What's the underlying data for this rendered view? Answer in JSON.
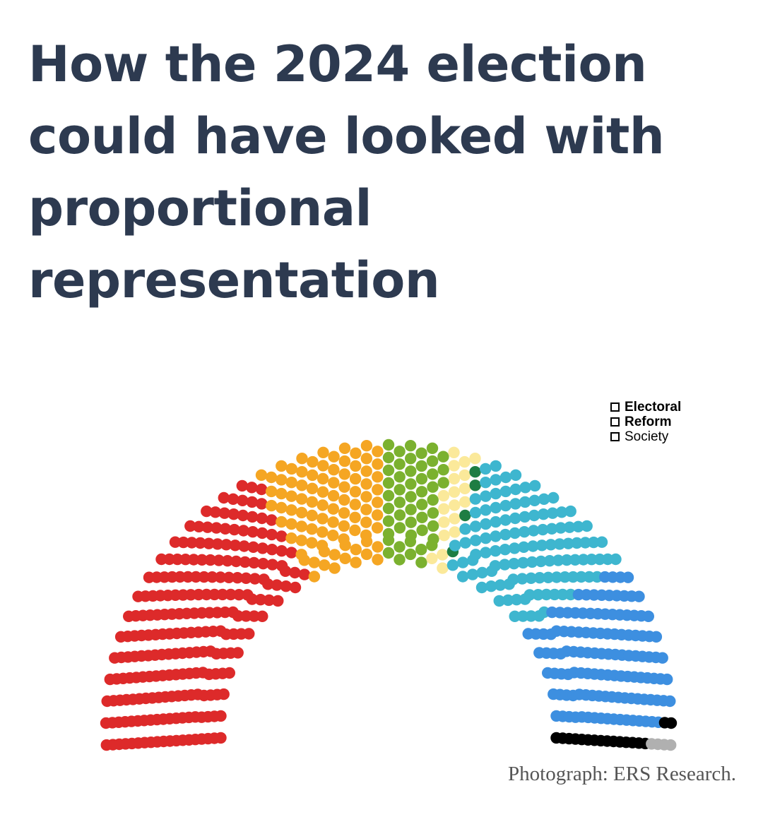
{
  "title": "How the 2024 election could have looked with proportional representation",
  "caption": "Photograph: ERS Research.",
  "logo": {
    "line1": "Electoral",
    "line2": "Reform",
    "line3": "Society"
  },
  "chart_data": {
    "type": "parliament",
    "title": "",
    "total_seats": 650,
    "series": [
      {
        "values": [
          230
        ],
        "color": "#dd2a2a"
      },
      {
        "values": [
          90
        ],
        "color": "#f5a623"
      },
      {
        "values": [
          50
        ],
        "color": "#7bb12f"
      },
      {
        "values": [
          19
        ],
        "color": "#fbe99a"
      },
      {
        "values": [
          4
        ],
        "color": "#1e7d43"
      },
      {
        "values": [
          116
        ],
        "color": "#3eb6cf"
      },
      {
        "values": [
          120
        ],
        "color": "#3d8fe0"
      },
      {
        "values": [
          17
        ],
        "color": "#000000"
      },
      {
        "values": [
          4
        ],
        "color": "#b0b0b0"
      }
    ]
  }
}
